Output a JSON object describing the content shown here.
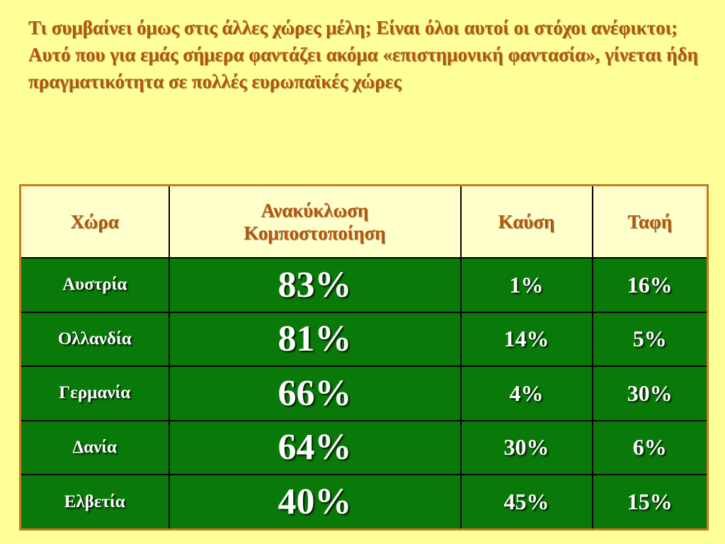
{
  "heading": {
    "line1": "Τι συμβαίνει όμως στις άλλες χώρες μέλη; Είναι όλοι αυτοί οι στόχοι ανέφικτοι;",
    "line2": "Αυτό που για εμάς σήμερα φαντάζει ακόμα «επιστημονική φαντασία», γίνεται ήδη πραγματικότητα σε πολλές ευρωπαϊκές χώρες"
  },
  "table": {
    "headers": {
      "country": "Χώρα",
      "recycle_line1": "Ανακύκλωση",
      "recycle_line2": "Κομποστοποίηση",
      "burn": "Καύση",
      "bury": "Ταφή"
    },
    "rows": [
      {
        "country": "Αυστρία",
        "recycle": "83%",
        "burn": "1%",
        "bury": "16%"
      },
      {
        "country": "Ολλανδία",
        "recycle": "81%",
        "burn": "14%",
        "bury": "5%"
      },
      {
        "country": "Γερμανία",
        "recycle": "66%",
        "burn": "4%",
        "bury": "30%"
      },
      {
        "country": "Δανία",
        "recycle": "64%",
        "burn": "30%",
        "bury": "6%"
      },
      {
        "country": "Ελβετία",
        "recycle": "40%",
        "burn": "45%",
        "bury": "15%"
      }
    ]
  },
  "colors": {
    "background": "#ffff99",
    "heading_text": "#b3560a",
    "header_cell": "#ffffcc",
    "data_cell": "#097a09",
    "table_border": "#c67a1e"
  }
}
